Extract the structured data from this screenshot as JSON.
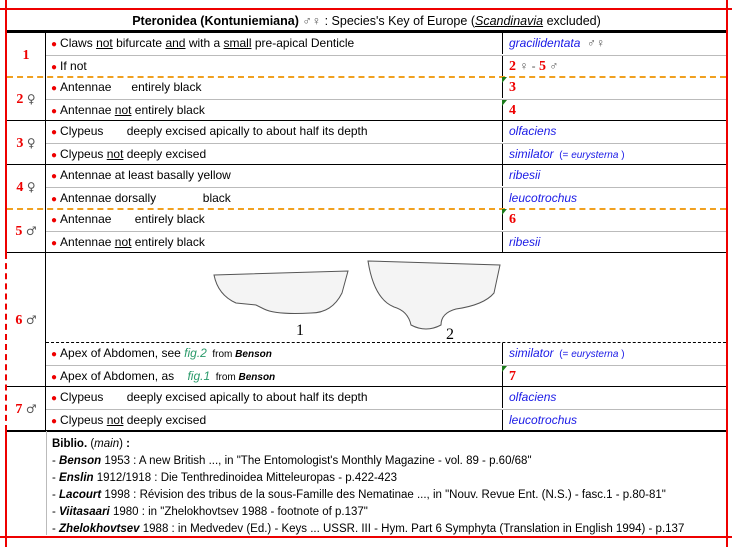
{
  "title": {
    "genus": "Pteronidea (Kontuniemiana)",
    "sexes": " ♂♀",
    "rest": " : Species's Key of Europe (",
    "region": "Scandinavia",
    "end": " excluded)"
  },
  "colors": {
    "accent_red": "#e00000",
    "species_blue": "#1a1ae6",
    "figure_green": "#2a9a6a",
    "separator_orange": "#f0a020"
  },
  "couplets": [
    {
      "num": "1",
      "sex": "",
      "rows": [
        {
          "lead": [
            {
              "t": "Claws "
            },
            {
              "t": "not",
              "c": "u"
            },
            {
              "t": " bifurcate "
            },
            {
              "t": "and",
              "c": "u"
            },
            {
              "t": " with a "
            },
            {
              "t": "small",
              "c": "u"
            },
            {
              "t": " pre-apical Denticle"
            }
          ],
          "res": [
            {
              "t": "gracilidentata",
              "c": "sp"
            },
            {
              "t": "  ♂♀",
              "c": "sym"
            }
          ]
        },
        {
          "lead": [
            {
              "t": "If not"
            }
          ],
          "res": [
            {
              "t": "2",
              "c": "num"
            },
            {
              "t": " ♀ - ",
              "c": "sym"
            },
            {
              "t": "5",
              "c": "num"
            },
            {
              "t": " ♂",
              "c": "sym"
            }
          ]
        }
      ]
    },
    {
      "num": "2",
      "sex": "♀",
      "rows": [
        {
          "lead": [
            {
              "t": "Antennae      entirely black"
            }
          ],
          "res": [
            {
              "t": "3",
              "c": "num"
            }
          ],
          "flag": true
        },
        {
          "lead": [
            {
              "t": "Antennae "
            },
            {
              "t": "not",
              "c": "u"
            },
            {
              "t": " entirely black"
            }
          ],
          "res": [
            {
              "t": "4",
              "c": "num"
            }
          ],
          "flag": true
        }
      ]
    },
    {
      "num": "3",
      "sex": "♀",
      "rows": [
        {
          "lead": [
            {
              "t": "Clypeus       deeply excised apically to about half its depth"
            }
          ],
          "res": [
            {
              "t": "olfaciens",
              "c": "sp"
            }
          ]
        },
        {
          "lead": [
            {
              "t": "Clypeus "
            },
            {
              "t": "not",
              "c": "u"
            },
            {
              "t": " deeply excised"
            }
          ],
          "res": [
            {
              "t": "similator",
              "c": "sp"
            },
            {
              "t": "  (= ",
              "c": "note"
            },
            {
              "t": "eurysterna",
              "c": "note sp"
            },
            {
              "t": " )",
              "c": "note"
            }
          ]
        }
      ]
    },
    {
      "num": "4",
      "sex": "♀",
      "rows": [
        {
          "lead": [
            {
              "t": "Antennae at least basally yellow"
            }
          ],
          "res": [
            {
              "t": "ribesii",
              "c": "sp"
            }
          ]
        },
        {
          "lead": [
            {
              "t": "Antennae dorsally              black"
            }
          ],
          "res": [
            {
              "t": "leucotrochus",
              "c": "sp"
            }
          ]
        }
      ]
    },
    {
      "num": "5",
      "sex": "♂",
      "rows": [
        {
          "lead": [
            {
              "t": "Antennae       entirely black"
            }
          ],
          "res": [
            {
              "t": "6",
              "c": "num"
            }
          ],
          "flag": true
        },
        {
          "lead": [
            {
              "t": "Antennae "
            },
            {
              "t": "not",
              "c": "u"
            },
            {
              "t": " entirely black"
            }
          ],
          "res": [
            {
              "t": "ribesii",
              "c": "sp"
            }
          ]
        }
      ]
    },
    {
      "num": "6",
      "sex": "♂",
      "figure": {
        "labels": [
          "1",
          "2"
        ]
      },
      "rows": [
        {
          "lead": [
            {
              "t": "Apex of Abdomen, see "
            },
            {
              "t": "fig.2",
              "c": "fig"
            },
            {
              "t": "  from ",
              "c": "small"
            },
            {
              "t": "Benson",
              "c": "small bi"
            }
          ],
          "res": [
            {
              "t": "similator",
              "c": "sp"
            },
            {
              "t": "  (= ",
              "c": "note"
            },
            {
              "t": "eurysterna",
              "c": "note sp"
            },
            {
              "t": " )",
              "c": "note"
            }
          ]
        },
        {
          "lead": [
            {
              "t": "Apex of Abdomen, as    "
            },
            {
              "t": "fig.1",
              "c": "fig"
            },
            {
              "t": "  from ",
              "c": "small"
            },
            {
              "t": "Benson",
              "c": "small bi"
            }
          ],
          "res": [
            {
              "t": "7",
              "c": "num"
            }
          ],
          "flag": true
        }
      ]
    },
    {
      "num": "7",
      "sex": "♂",
      "rows": [
        {
          "lead": [
            {
              "t": "Clypeus       deeply excised apically to about half its depth"
            }
          ],
          "res": [
            {
              "t": "olfaciens",
              "c": "sp"
            }
          ]
        },
        {
          "lead": [
            {
              "t": "Clypeus "
            },
            {
              "t": "not",
              "c": "u"
            },
            {
              "t": " deeply excised"
            }
          ],
          "res": [
            {
              "t": "leucotrochus",
              "c": "sp"
            }
          ]
        }
      ]
    }
  ],
  "biblio": {
    "heading": "Biblio.",
    "main": "main",
    "entries": [
      {
        "author": "Benson",
        "text": " 1953 : A new British ..., in \"The Entomologist's Monthly Magazine - vol. 89 - p.60/68\""
      },
      {
        "author": "Enslin",
        "text": " 1912/1918 : Die Tenthredinoidea Mitteleuropas - p.422-423"
      },
      {
        "author": "Lacourt",
        "text": " 1998 : Révision des tribus de la sous-Famille des Nematinae ..., in \"Nouv. Revue Ent. (N.S.) - fasc.1 - p.80-81\""
      },
      {
        "author": "Viitasaari",
        "text": " 1980 : in \"Zhelokhovtsev 1988 - footnote of p.137\""
      },
      {
        "author": "Zhelokhovtsev",
        "text": " 1988 : in Medvedev (Ed.) - Keys ... USSR. III - Hym. Part 6 Symphyta (Translation in English 1994) - p.137"
      }
    ]
  }
}
